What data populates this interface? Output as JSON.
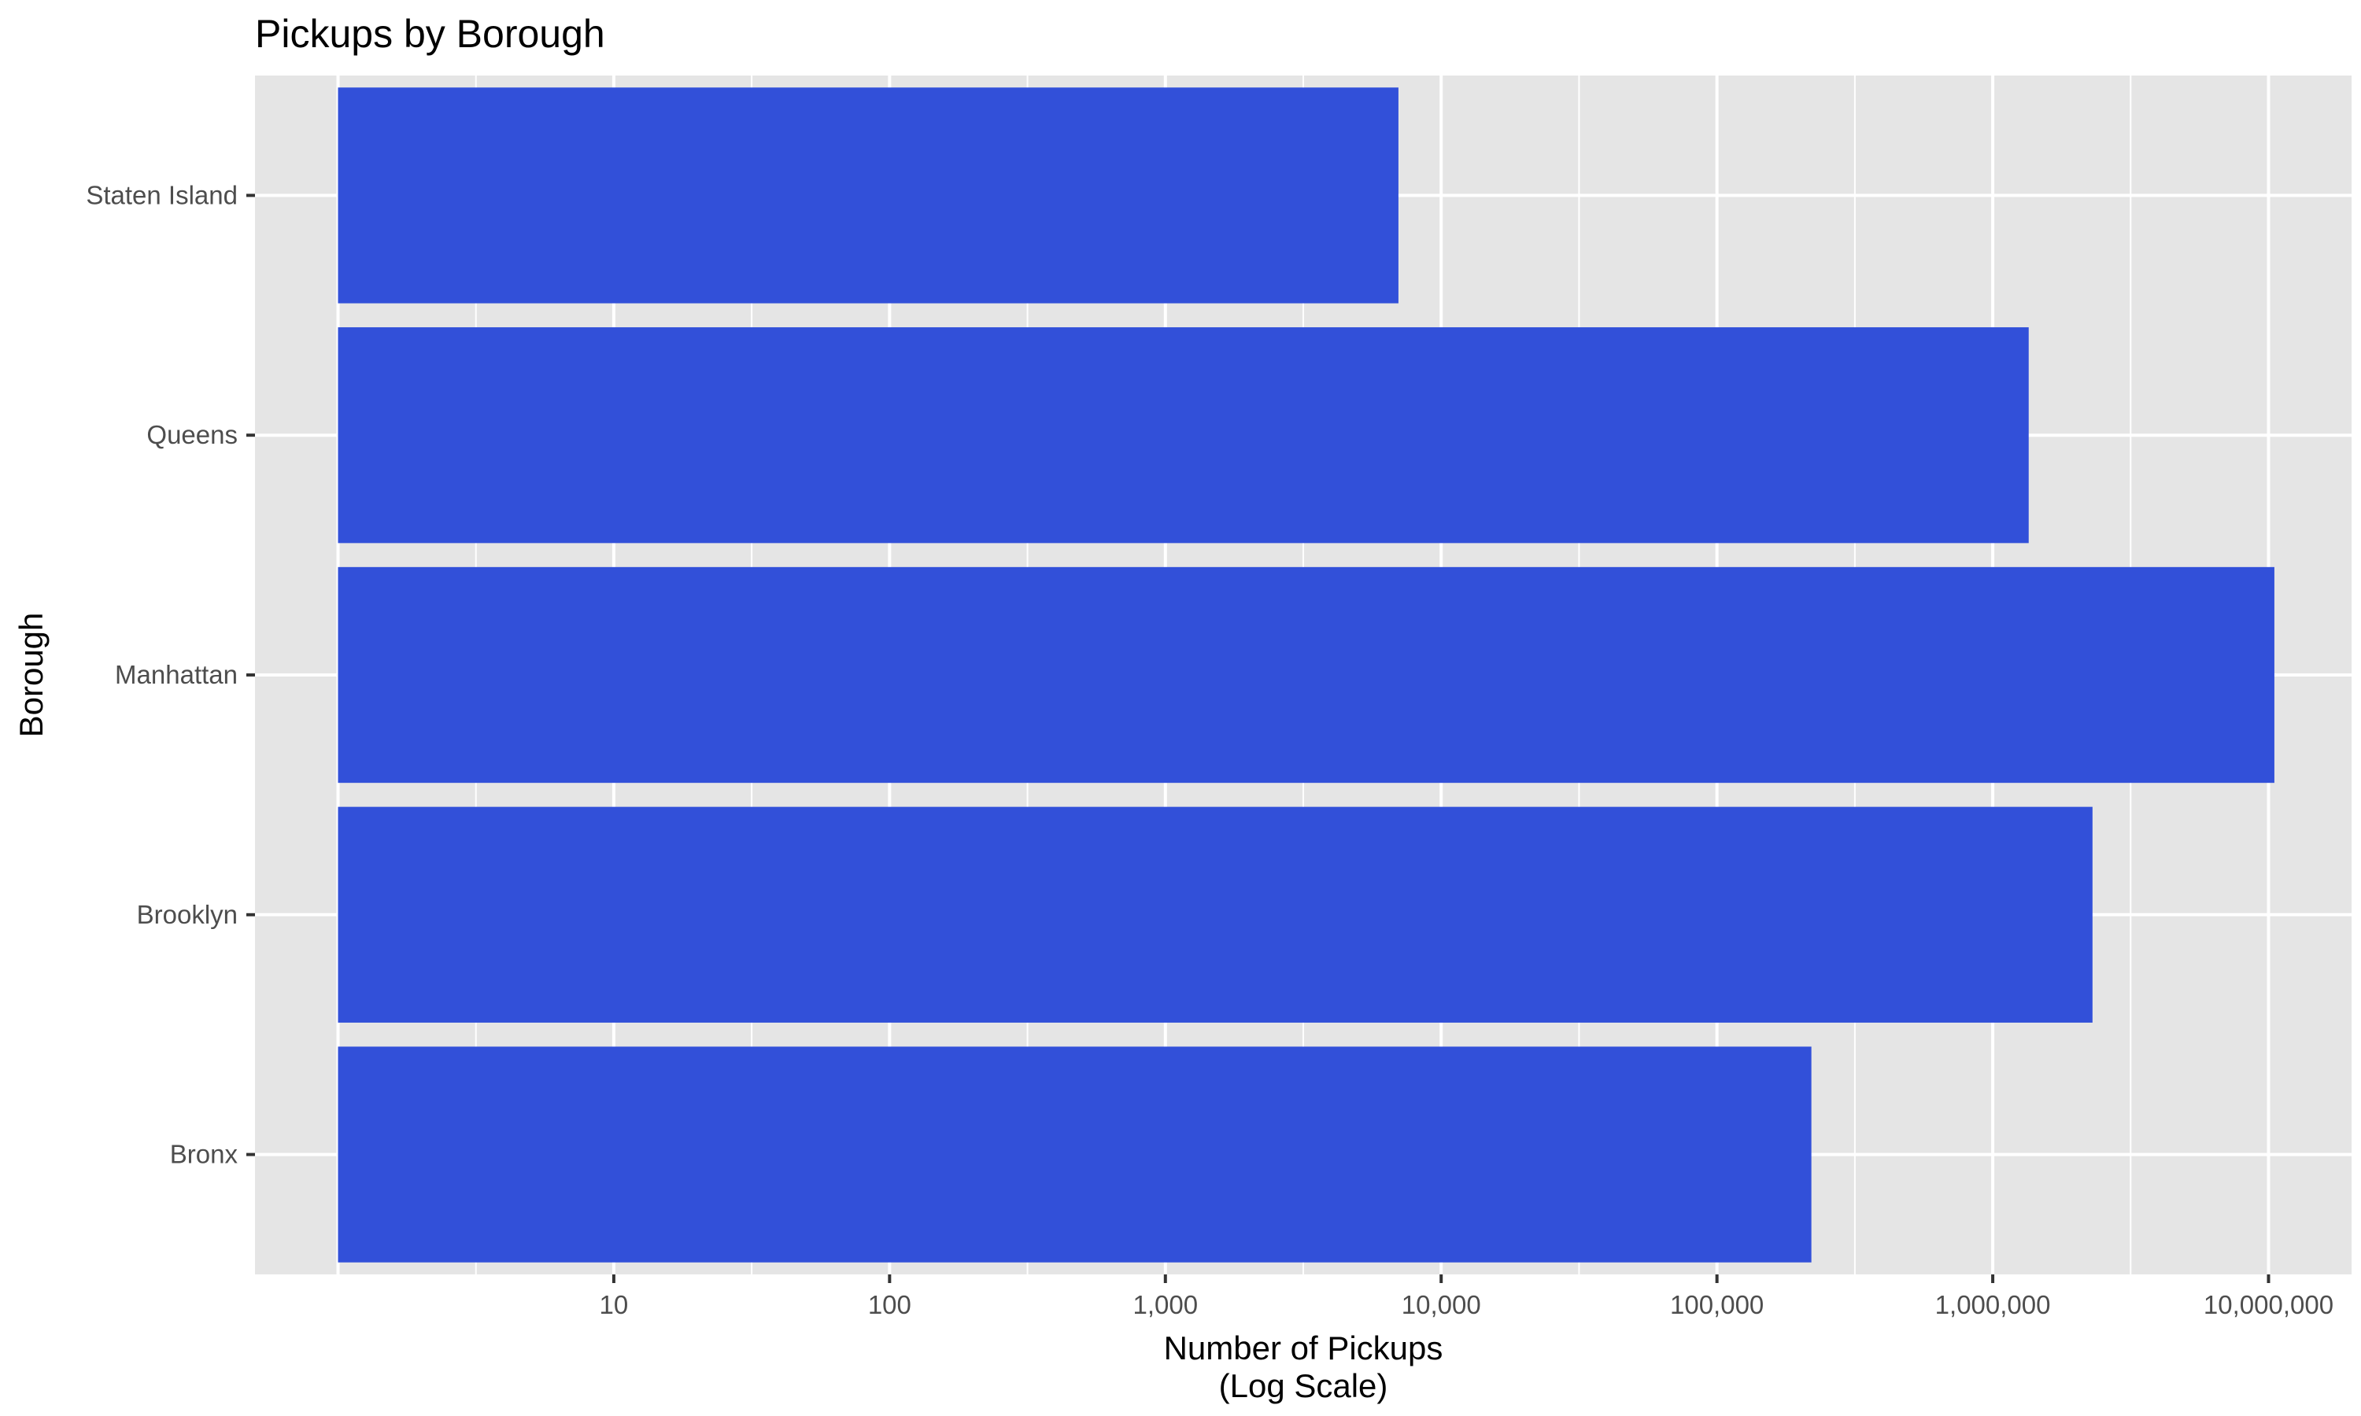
{
  "chart_data": {
    "type": "bar",
    "orientation": "horizontal",
    "title": "Pickups by Borough",
    "xlabel_lines": [
      "Number of Pickups",
      "(Log Scale)"
    ],
    "ylabel": "Borough",
    "x_scale": "log10",
    "xlim": [
      0.5,
      20000000
    ],
    "x_ticks": [
      10,
      100,
      1000,
      10000,
      100000,
      1000000,
      10000000
    ],
    "x_tick_labels": [
      "10",
      "100",
      "1,000",
      "10,000",
      "100,000",
      "1,000,000",
      "10,000,000"
    ],
    "bar_base": 1,
    "categories": [
      "Bronx",
      "Brooklyn",
      "Manhattan",
      "Queens",
      "Staten Island"
    ],
    "values": [
      220000,
      2300000,
      10500000,
      1350000,
      7000
    ],
    "bar_color": "#3250d9",
    "panel_background": "#e5e5e5",
    "grid": true,
    "legend": "none"
  }
}
